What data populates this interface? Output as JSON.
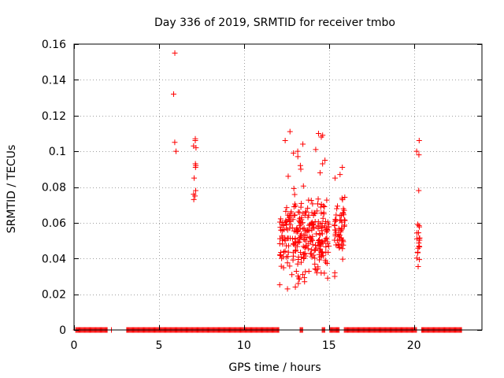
{
  "colors": {
    "points": "#ff0000",
    "grid": "#a0a0a0",
    "axis": "#000000"
  },
  "chart_data": {
    "type": "scatter",
    "title": "Day 336 of 2019, SRMTID for receiver tmbo",
    "xlabel": "GPS time / hours",
    "ylabel": "SRMTID / TECUs",
    "xlim": [
      0,
      24
    ],
    "ylim": [
      0,
      0.16
    ],
    "grid": true,
    "marker": "plus",
    "xticks": [
      0,
      5,
      10,
      15,
      20
    ],
    "xtick_labels": [
      "0",
      "5",
      "10",
      "15",
      "20"
    ],
    "yticks": [
      0,
      0.02,
      0.04,
      0.06,
      0.08,
      0.1,
      0.12,
      0.14,
      0.16
    ],
    "ytick_labels": [
      "0",
      "0.02",
      "0.04",
      "0.06",
      "0.08",
      "0.1",
      "0.12",
      "0.14",
      "0.16"
    ],
    "zero_runs": [
      [
        0.1,
        1.95
      ],
      [
        2.2,
        2.2
      ],
      [
        3.1,
        12.05
      ],
      [
        13.3,
        13.45
      ],
      [
        14.6,
        14.75
      ],
      [
        15.05,
        15.6
      ],
      [
        15.9,
        20.15
      ],
      [
        20.45,
        22.8
      ]
    ],
    "zero_step": 0.05,
    "clusters": [
      {
        "x0": 5.8,
        "x1": 6.0,
        "n": 4,
        "pts": [
          0.155,
          0.132,
          0.105,
          0.1
        ]
      },
      {
        "x0": 7.0,
        "x1": 7.2,
        "n": 12,
        "pts": [
          0.107,
          0.106,
          0.103,
          0.102,
          0.093,
          0.092,
          0.091,
          0.085,
          0.078,
          0.076,
          0.075,
          0.073
        ]
      },
      {
        "x0": 12.1,
        "x1": 15.0,
        "n": 300,
        "ymin": 0.022,
        "ymax": 0.083,
        "pts": [
          0.111,
          0.11,
          0.109,
          0.108,
          0.106,
          0.104,
          0.101,
          0.1,
          0.099,
          0.097,
          0.095,
          0.093,
          0.092,
          0.09,
          0.088,
          0.086,
          0.023,
          0.024,
          0.026,
          0.027,
          0.029,
          0.031,
          0.032
        ]
      },
      {
        "x0": 15.3,
        "x1": 15.95,
        "n": 60,
        "ymin": 0.035,
        "ymax": 0.083,
        "pts": [
          0.091,
          0.087,
          0.085,
          0.03,
          0.032
        ]
      },
      {
        "x0": 20.15,
        "x1": 20.35,
        "n": 22,
        "ymin": 0.028,
        "ymax": 0.066,
        "pts": [
          0.106,
          0.1,
          0.098,
          0.078
        ]
      }
    ]
  }
}
